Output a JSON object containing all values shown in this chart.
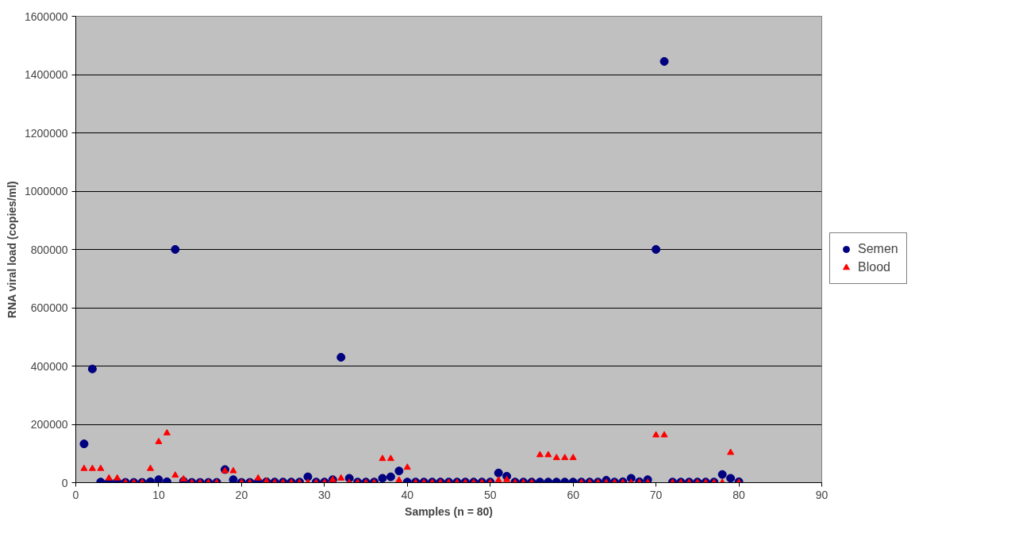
{
  "chart_data": {
    "type": "scatter",
    "xlabel": "Samples (n = 80)",
    "ylabel": "RNA viral load (copies/ml)",
    "x": [
      1,
      2,
      3,
      4,
      5,
      6,
      7,
      8,
      9,
      10,
      11,
      12,
      13,
      14,
      15,
      16,
      17,
      18,
      19,
      20,
      21,
      22,
      23,
      24,
      25,
      26,
      27,
      28,
      29,
      30,
      31,
      32,
      33,
      34,
      35,
      36,
      37,
      38,
      39,
      40,
      41,
      42,
      43,
      44,
      45,
      46,
      47,
      48,
      49,
      50,
      51,
      52,
      53,
      54,
      55,
      56,
      57,
      58,
      59,
      60,
      61,
      62,
      63,
      64,
      65,
      66,
      67,
      68,
      69,
      70,
      71,
      72,
      73,
      74,
      75,
      76,
      77,
      78,
      79,
      80
    ],
    "series": [
      {
        "name": "Semen",
        "color": "#000080",
        "marker": "circle",
        "values": [
          133000,
          390000,
          2000,
          2000,
          3000,
          1000,
          1000,
          1000,
          3000,
          10000,
          3000,
          800000,
          5000,
          1000,
          1000,
          1000,
          1000,
          45000,
          10000,
          1000,
          1000,
          3000,
          3000,
          2000,
          2000,
          2000,
          2000,
          20000,
          2000,
          2000,
          10000,
          430000,
          15000,
          2000,
          2000,
          2000,
          15000,
          20000,
          40000,
          2000,
          2000,
          2000,
          2000,
          2000,
          2000,
          2000,
          2000,
          2000,
          2000,
          2000,
          33000,
          22000,
          2000,
          2000,
          2000,
          2000,
          2000,
          2000,
          2000,
          2000,
          2000,
          2000,
          2000,
          8000,
          2000,
          3000,
          15000,
          3000,
          10000,
          800000,
          1445000,
          2000,
          2000,
          2000,
          2000,
          2000,
          2000,
          28000,
          15000,
          3000
        ]
      },
      {
        "name": "Blood",
        "color": "#ff0000",
        "marker": "triangle",
        "values": [
          48000,
          48000,
          48000,
          15000,
          15000,
          0,
          0,
          0,
          48000,
          140000,
          170000,
          25000,
          12000,
          0,
          0,
          0,
          0,
          40000,
          40000,
          0,
          0,
          15000,
          5000,
          0,
          0,
          0,
          0,
          0,
          0,
          0,
          10000,
          15000,
          0,
          0,
          0,
          0,
          82000,
          82000,
          8000,
          52000,
          0,
          0,
          0,
          0,
          0,
          0,
          0,
          0,
          0,
          0,
          8000,
          10000,
          0,
          0,
          0,
          95000,
          95000,
          85000,
          85000,
          85000,
          0,
          0,
          0,
          0,
          0,
          0,
          0,
          0,
          0,
          163000,
          163000,
          0,
          0,
          0,
          0,
          0,
          0,
          0,
          103000,
          0
        ]
      }
    ],
    "xlim": [
      0,
      90
    ],
    "xticks": [
      0,
      10,
      20,
      30,
      40,
      50,
      60,
      70,
      80,
      90
    ],
    "ylim": [
      0,
      1600000
    ],
    "yticks": [
      0,
      200000,
      400000,
      600000,
      800000,
      1000000,
      1200000,
      1400000,
      1600000
    ],
    "grid": "y",
    "legend": "right"
  }
}
